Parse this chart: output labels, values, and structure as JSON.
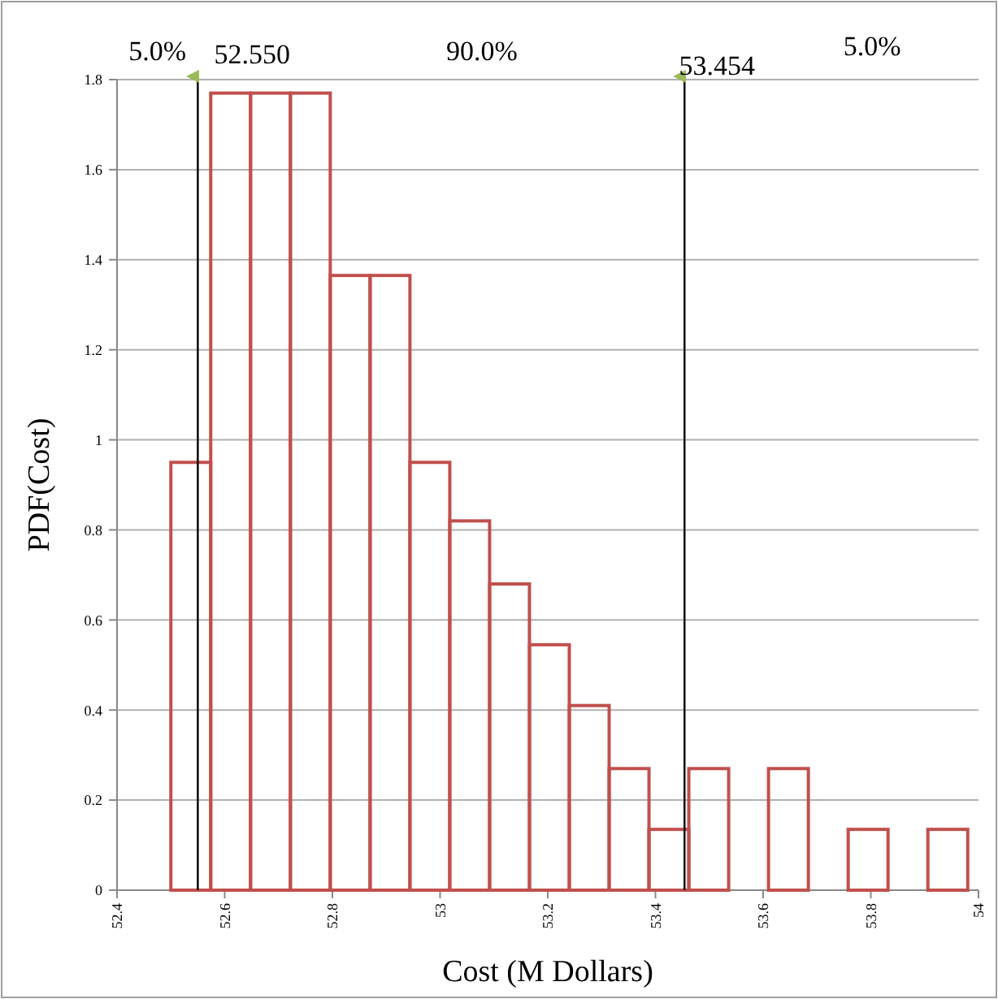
{
  "chart_data": {
    "type": "histogram",
    "xlabel": "Cost (M Dollars)",
    "ylabel": "PDF(Cost)",
    "bins": [
      52.5,
      52.574,
      52.648,
      52.722,
      52.796,
      52.87,
      52.944,
      53.018,
      53.092,
      53.166,
      53.24,
      53.314,
      53.388,
      53.462,
      53.536,
      53.61,
      53.684,
      53.758,
      53.832,
      53.906,
      53.98
    ],
    "values": [
      0.95,
      1.77,
      1.77,
      1.77,
      1.365,
      1.365,
      0.95,
      0.82,
      0.68,
      0.545,
      0.41,
      0.27,
      0.135,
      0.27,
      0,
      0.27,
      0,
      0.135,
      0,
      0.135
    ],
    "color": "#c0504d",
    "xlim": [
      52.4,
      54
    ],
    "xticks": [
      52.4,
      52.6,
      52.8,
      53,
      53.2,
      53.4,
      53.6,
      53.8,
      54
    ],
    "ylim": [
      0,
      1.8
    ],
    "yticks": [
      0,
      0.2,
      0.4,
      0.6,
      0.8,
      1,
      1.2,
      1.4,
      1.6,
      1.8
    ],
    "grid": "y",
    "ref_lines": [
      {
        "axis": "x",
        "value": 52.55,
        "label": "52.550",
        "color": "#000000"
      },
      {
        "axis": "x",
        "value": 53.454,
        "label": "53.454",
        "color": "#000000"
      }
    ],
    "annotations": [
      "5.0%",
      "90.0%",
      "5.0%"
    ]
  }
}
